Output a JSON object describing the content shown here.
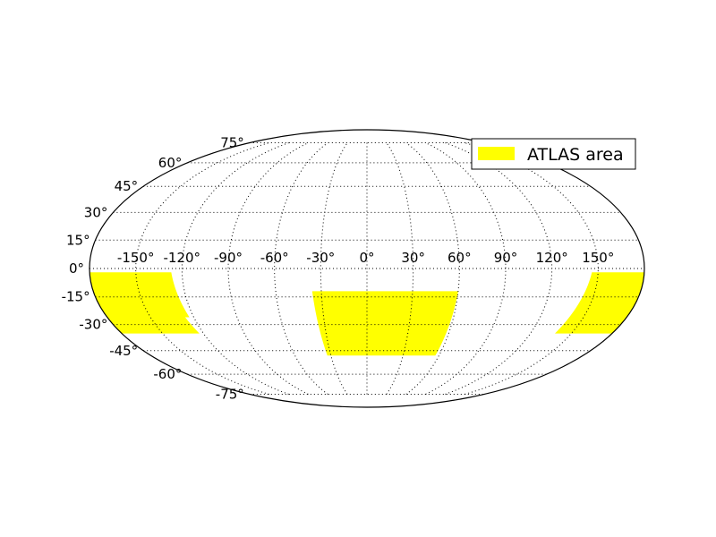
{
  "chart_data": {
    "type": "map",
    "projection": "mollweide",
    "grid": true,
    "legend": {
      "location": "upper-right",
      "entries": [
        {
          "label": "ATLAS area",
          "color": "#ffff00"
        }
      ]
    },
    "lon_ticks": [
      "-150°",
      "-120°",
      "-90°",
      "-60°",
      "-30°",
      "0°",
      "30°",
      "60°",
      "90°",
      "120°",
      "150°"
    ],
    "lat_ticks": [
      "75°",
      "60°",
      "45°",
      "30°",
      "15°",
      "0°",
      "-15°",
      "-30°",
      "-45°",
      "-60°",
      "-75°"
    ],
    "regions": [
      {
        "name": "ATLAS area",
        "polygon_lonlat": [
          [
            -36,
            -12
          ],
          [
            60,
            -12
          ],
          [
            57,
            -48
          ],
          [
            -33,
            -48
          ]
        ]
      },
      {
        "name": "ATLAS area",
        "polygon_lonlat": [
          [
            -180,
            -2
          ],
          [
            -127,
            -2
          ],
          [
            -123,
            -26
          ],
          [
            -126,
            -26
          ],
          [
            -123,
            -35
          ],
          [
            -180,
            -35
          ]
        ]
      },
      {
        "name": "ATLAS area",
        "polygon_lonlat": [
          [
            146,
            -2
          ],
          [
            180,
            -2
          ],
          [
            180,
            -35
          ],
          [
            138,
            -35
          ]
        ]
      }
    ]
  }
}
